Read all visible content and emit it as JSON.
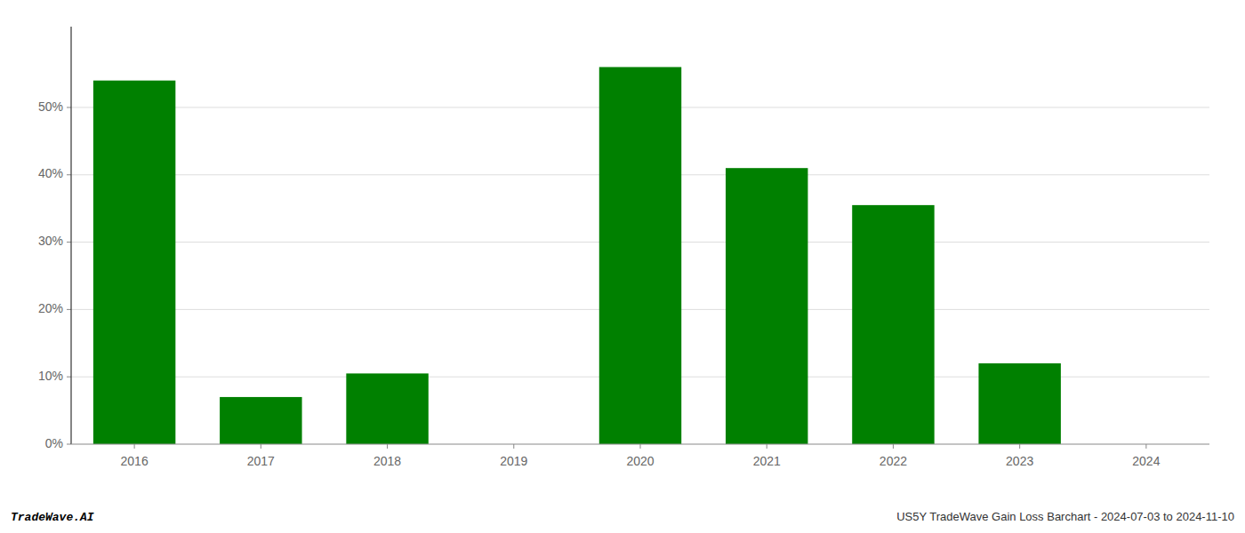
{
  "chart_data": {
    "type": "bar",
    "categories": [
      "2016",
      "2017",
      "2018",
      "2019",
      "2020",
      "2021",
      "2022",
      "2023",
      "2024"
    ],
    "values": [
      54.0,
      7.0,
      10.5,
      0.0,
      56.0,
      41.0,
      35.5,
      12.0,
      0.0
    ],
    "color": "#008000",
    "ylim": [
      0,
      62
    ],
    "yticks": [
      {
        "value": 0,
        "label": "0%"
      },
      {
        "value": 10,
        "label": "10%"
      },
      {
        "value": 20,
        "label": "20%"
      },
      {
        "value": 30,
        "label": "30%"
      },
      {
        "value": 40,
        "label": "40%"
      },
      {
        "value": 50,
        "label": "50%"
      }
    ],
    "grid": true,
    "annotations": [
      "TradeWave.AI",
      "US5Y TradeWave Gain Loss Barchart - 2024-07-03 to 2024-11-10"
    ]
  }
}
